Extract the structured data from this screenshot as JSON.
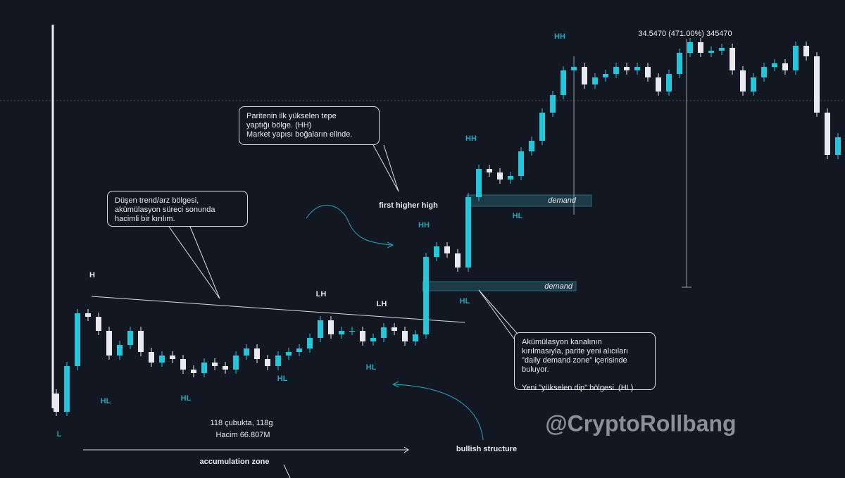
{
  "chart_data": {
    "type": "candlestick",
    "open": [
      120,
      94,
      159,
      234,
      229,
      209,
      174,
      189,
      209,
      179,
      164,
      174,
      169,
      154,
      149,
      164,
      159,
      154,
      174,
      184,
      169,
      159,
      174,
      179,
      184,
      199,
      224,
      204,
      209,
      209,
      194,
      199,
      214,
      209,
      194,
      204,
      314,
      329,
      319,
      299,
      399,
      439,
      434,
      424,
      429,
      464,
      479,
      519,
      544,
      579,
      584,
      559,
      569,
      574,
      584,
      579,
      584,
      569,
      549,
      574,
      604,
      619,
      604,
      607,
      611,
      579,
      549,
      569,
      584,
      589,
      579,
      614,
      599,
      519,
      459
    ],
    "high": [
      126,
      165,
      240,
      240,
      235,
      215,
      195,
      215,
      215,
      185,
      180,
      180,
      175,
      160,
      170,
      170,
      165,
      180,
      190,
      190,
      175,
      180,
      185,
      190,
      205,
      230,
      230,
      215,
      215,
      215,
      205,
      220,
      220,
      215,
      210,
      320,
      335,
      335,
      325,
      405,
      445,
      445,
      440,
      435,
      470,
      485,
      525,
      550,
      585,
      590,
      590,
      575,
      580,
      590,
      590,
      590,
      590,
      575,
      580,
      610,
      625,
      625,
      613,
      617,
      617,
      585,
      575,
      590,
      595,
      595,
      620,
      620,
      605,
      525,
      490
    ],
    "low": [
      88,
      88,
      153,
      223,
      203,
      168,
      168,
      183,
      173,
      158,
      158,
      163,
      148,
      143,
      143,
      153,
      148,
      148,
      168,
      163,
      153,
      153,
      168,
      173,
      178,
      193,
      198,
      198,
      203,
      188,
      188,
      193,
      203,
      188,
      188,
      198,
      308,
      313,
      293,
      293,
      393,
      428,
      418,
      418,
      423,
      458,
      473,
      513,
      538,
      573,
      553,
      553,
      563,
      568,
      573,
      573,
      563,
      543,
      543,
      568,
      598,
      598,
      598,
      601,
      573,
      543,
      543,
      563,
      578,
      573,
      573,
      593,
      513,
      453,
      453
    ],
    "close": [
      94,
      159,
      234,
      229,
      209,
      174,
      189,
      209,
      179,
      164,
      174,
      169,
      154,
      149,
      164,
      159,
      154,
      174,
      184,
      169,
      159,
      174,
      179,
      184,
      199,
      224,
      204,
      209,
      209,
      194,
      199,
      214,
      209,
      194,
      204,
      314,
      329,
      319,
      299,
      399,
      439,
      434,
      424,
      429,
      464,
      479,
      519,
      544,
      579,
      584,
      559,
      569,
      574,
      584,
      579,
      584,
      569,
      549,
      574,
      604,
      619,
      604,
      607,
      611,
      579,
      549,
      569,
      584,
      589,
      579,
      614,
      599,
      519,
      459,
      484
    ],
    "ylim": [
      0,
      679
    ],
    "up_color": "#26c6da",
    "down_color": "#e8eaf0",
    "annotations": [
      "H",
      "LH",
      "LH",
      "HH",
      "HH",
      "HH",
      "HL",
      "HL",
      "HL",
      "HL",
      "HL",
      "HL",
      "L",
      "first higher high",
      "demand",
      "demand",
      "118 çubukta, 118g",
      "Hacim 66.807M",
      "accumulation zone",
      "bullish structure",
      "34.5470 (471.00%) 345470",
      "@CryptoRollbang"
    ],
    "callouts": [
      "Paritenin ilk yükselen tepe\nyaptığı bölge. (HH)\nMarket yapısı boğaların elinde.",
      "Düşen trend/arz bölgesi,\nakümülasyon süreci sonunda\nhacimli bir kırılım.",
      "Akümülasyon kanalının\nkırılmasıyla, parite yeni alıcıları\n\"daily demand zone\" içerisinde\nbuluyor.\n\nYeni \"yükselen dip\" bölgesi. (HL)"
    ]
  }
}
